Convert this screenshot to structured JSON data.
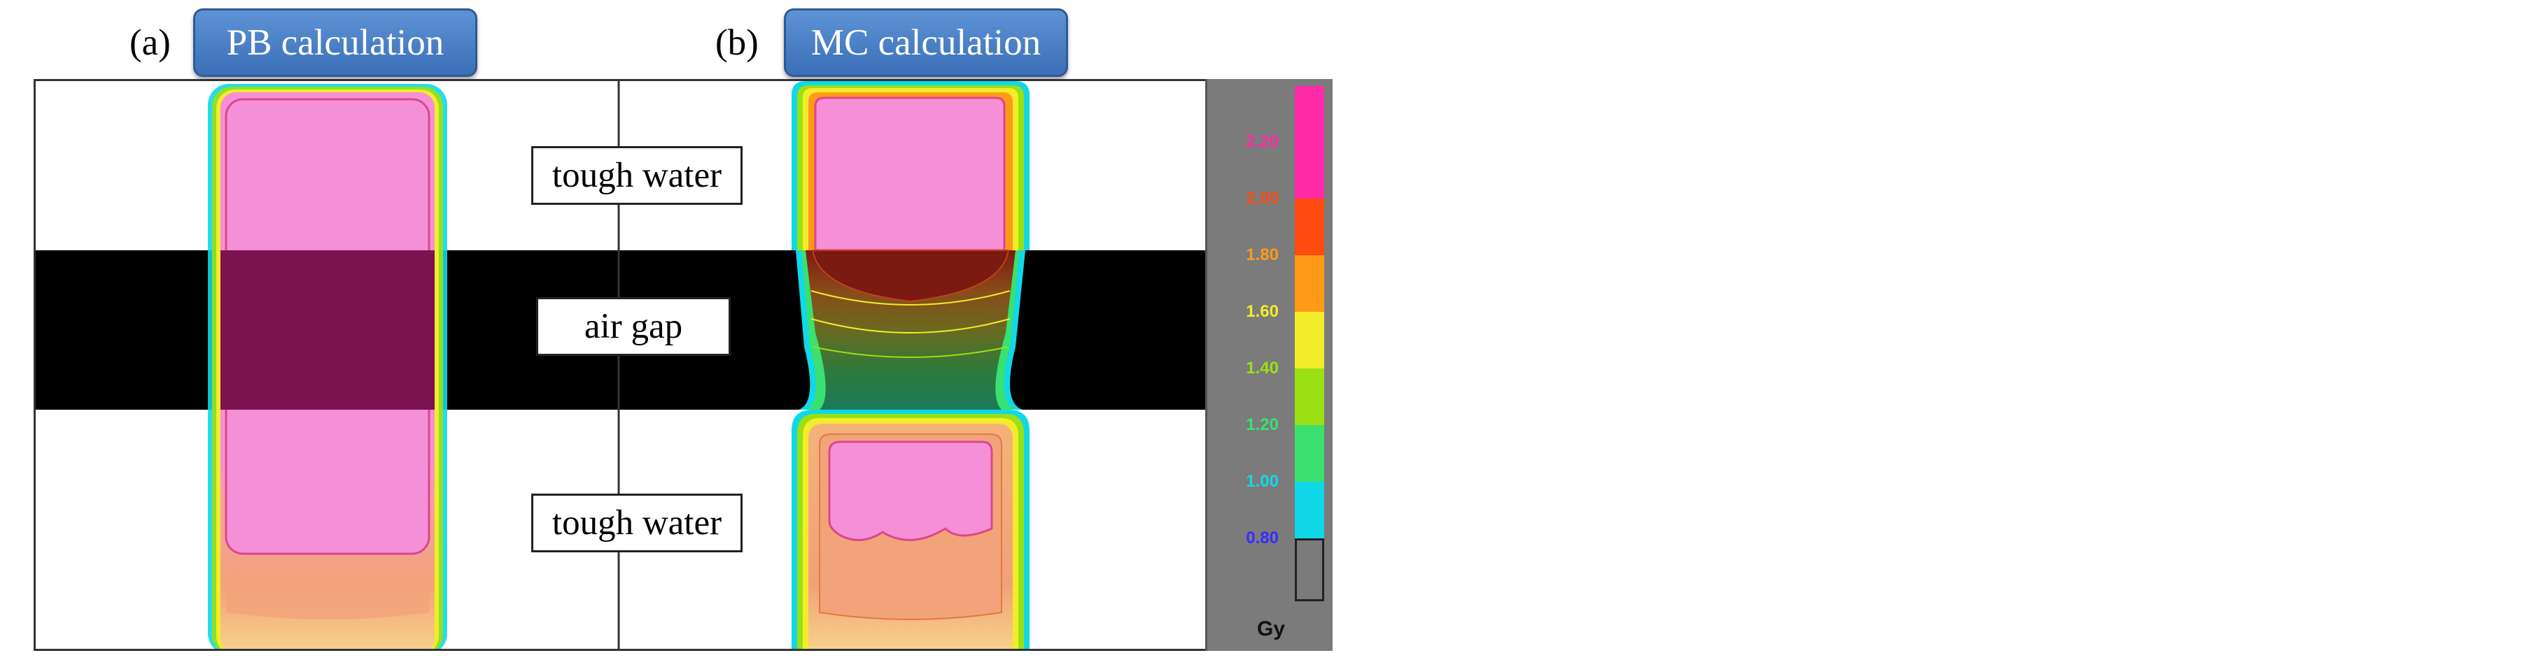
{
  "panels": [
    {
      "letter": "(a)",
      "title": "PB calculation"
    },
    {
      "letter": "(b)",
      "title": "MC calculation"
    }
  ],
  "regions": {
    "top": "tough water",
    "middle": "air gap",
    "bottom": "tough water"
  },
  "colorbar": {
    "unit": "Gy",
    "levels": [
      {
        "label": "2.20",
        "color": "#ff2aa8"
      },
      {
        "label": "2.00",
        "color": "#ff4a10"
      },
      {
        "label": "1.80",
        "color": "#ff9a18"
      },
      {
        "label": "1.60",
        "color": "#f2ec2a"
      },
      {
        "label": "1.40",
        "color": "#9ae014"
      },
      {
        "label": "1.20",
        "color": "#3ae070"
      },
      {
        "label": "1.00",
        "color": "#10d8e8"
      },
      {
        "label": "0.80",
        "color": "#3a2cff"
      }
    ],
    "top_color": "#ff2aa8",
    "bottom_color": "#7b7b7b"
  }
}
